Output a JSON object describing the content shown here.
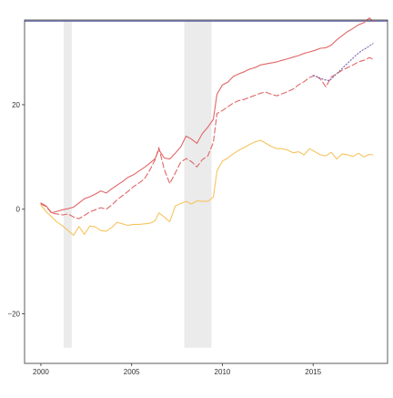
{
  "chart_data": {
    "type": "line",
    "title": "",
    "xlabel": "",
    "ylabel": "",
    "xlim": [
      1999.1,
      2019.1
    ],
    "ylim": [
      -29.5,
      36.2
    ],
    "grid": false,
    "legend": "none",
    "x_ticks": [
      2000,
      2005,
      2010,
      2015
    ],
    "x_tick_labels": [
      "2000",
      "2005",
      "2010",
      "2015"
    ],
    "y_ticks": [
      -20,
      0,
      20
    ],
    "y_tick_labels": [
      "−20",
      "0",
      "20"
    ],
    "shaded_periods": [
      {
        "start": 2001.25,
        "end": 2001.7,
        "ymin": -26.5,
        "ymax": 36.0,
        "color": "#ebebeb"
      },
      {
        "start": 2007.9,
        "end": 2009.4,
        "ymin": -26.5,
        "ymax": 36.0,
        "color": "#ebebeb"
      }
    ],
    "horizontal_lines": [
      {
        "y": 36.0,
        "color": "#5b5ea6"
      }
    ],
    "series": [
      {
        "color": "#e06666",
        "style": "solid",
        "x": [
          2000.0,
          2000.3,
          2000.6,
          2000.9,
          2001.2,
          2001.5,
          2001.8,
          2002.1,
          2002.4,
          2002.7,
          2003.0,
          2003.3,
          2003.6,
          2003.9,
          2004.2,
          2004.5,
          2004.8,
          2005.1,
          2005.4,
          2005.7,
          2006.0,
          2006.3,
          2006.5,
          2006.8,
          2007.1,
          2007.4,
          2007.7,
          2008.0,
          2008.3,
          2008.6,
          2008.9,
          2009.2,
          2009.5,
          2009.7,
          2010.0,
          2010.3,
          2010.6,
          2010.9,
          2011.2,
          2011.5,
          2011.8,
          2012.1,
          2012.4,
          2012.7,
          2013.0,
          2013.3,
          2013.6,
          2013.9,
          2014.2,
          2014.5,
          2014.8,
          2015.1,
          2015.4,
          2015.7,
          2016.0,
          2016.3,
          2016.6,
          2016.9,
          2017.2,
          2017.5,
          2017.8,
          2018.1,
          2018.3
        ],
        "values": [
          1.2,
          0.6,
          -0.7,
          -0.4,
          -0.1,
          0.1,
          0.4,
          1.2,
          2.0,
          2.4,
          2.9,
          3.5,
          3.1,
          3.9,
          4.6,
          5.3,
          6.1,
          6.6,
          7.3,
          8.0,
          8.8,
          9.7,
          11.4,
          9.8,
          9.6,
          10.7,
          11.9,
          14.0,
          13.4,
          12.6,
          14.5,
          15.7,
          17.2,
          22.0,
          23.8,
          24.3,
          25.4,
          25.9,
          26.3,
          26.8,
          27.1,
          27.6,
          27.8,
          28.0,
          28.2,
          28.5,
          28.8,
          29.1,
          29.4,
          29.8,
          30.1,
          30.4,
          30.8,
          30.9,
          31.4,
          32.4,
          33.2,
          34.0,
          34.6,
          35.3,
          35.7,
          36.6,
          35.9
        ]
      },
      {
        "color": "#e06666",
        "style": "dashed",
        "x": [
          2000.0,
          2000.3,
          2000.6,
          2000.9,
          2001.2,
          2001.5,
          2001.8,
          2002.1,
          2002.4,
          2002.7,
          2003.0,
          2003.3,
          2003.6,
          2003.9,
          2004.2,
          2004.5,
          2004.8,
          2005.1,
          2005.4,
          2005.7,
          2006.0,
          2006.3,
          2006.5,
          2006.8,
          2007.1,
          2007.4,
          2007.7,
          2008.0,
          2008.3,
          2008.6,
          2008.9,
          2009.2,
          2009.5,
          2009.7,
          2010.0,
          2010.3,
          2010.6,
          2010.9,
          2011.2,
          2011.5,
          2011.8,
          2012.1,
          2012.4,
          2012.7,
          2013.0,
          2013.3,
          2013.6,
          2013.9,
          2014.2,
          2014.5,
          2014.8,
          2015.1,
          2015.4,
          2015.7,
          2016.0,
          2016.3,
          2016.6,
          2016.9,
          2017.2,
          2017.5,
          2017.8,
          2018.1,
          2018.3
        ],
        "values": [
          1.0,
          0.5,
          -0.8,
          -0.9,
          -1.1,
          -0.9,
          -1.5,
          -1.8,
          -1.2,
          -0.5,
          -0.1,
          0.3,
          0.0,
          0.8,
          1.8,
          2.6,
          3.4,
          4.3,
          5.0,
          5.8,
          7.5,
          9.5,
          11.8,
          7.6,
          4.9,
          6.9,
          9.0,
          9.7,
          9.1,
          8.1,
          9.5,
          10.2,
          12.8,
          18.3,
          18.9,
          19.6,
          20.3,
          20.8,
          21.0,
          21.4,
          21.8,
          22.2,
          22.4,
          22.0,
          21.7,
          22.1,
          22.5,
          23.0,
          23.8,
          24.4,
          25.2,
          25.6,
          24.9,
          23.4,
          25.3,
          25.9,
          26.6,
          27.1,
          27.6,
          28.2,
          28.5,
          29.0,
          28.7
        ]
      },
      {
        "color": "#7b5ea6",
        "style": "dotted",
        "x": [
          2015.0,
          2015.3,
          2015.6,
          2015.9,
          2016.2,
          2016.5,
          2016.8,
          2017.1,
          2017.4,
          2017.7,
          2018.0,
          2018.3
        ],
        "values": [
          25.6,
          25.2,
          24.8,
          24.6,
          25.6,
          26.6,
          27.6,
          28.6,
          29.6,
          30.4,
          31.0,
          31.7
        ]
      },
      {
        "color": "#f6c45f",
        "style": "solid",
        "x": [
          2000.0,
          2000.3,
          2000.6,
          2000.9,
          2001.2,
          2001.5,
          2001.8,
          2002.1,
          2002.4,
          2002.7,
          2003.0,
          2003.3,
          2003.6,
          2003.9,
          2004.2,
          2004.5,
          2004.8,
          2005.1,
          2005.4,
          2005.7,
          2006.0,
          2006.3,
          2006.5,
          2006.8,
          2007.1,
          2007.4,
          2007.7,
          2008.0,
          2008.3,
          2008.6,
          2008.9,
          2009.2,
          2009.5,
          2009.7,
          2010.0,
          2010.3,
          2010.6,
          2010.9,
          2011.2,
          2011.5,
          2011.8,
          2012.1,
          2012.4,
          2012.7,
          2013.0,
          2013.3,
          2013.6,
          2013.9,
          2014.2,
          2014.5,
          2014.8,
          2015.1,
          2015.4,
          2015.7,
          2016.0,
          2016.3,
          2016.6,
          2016.9,
          2017.2,
          2017.5,
          2017.8,
          2018.1,
          2018.3
        ],
        "values": [
          0.8,
          -0.5,
          -1.5,
          -2.5,
          -3.2,
          -4.1,
          -5.0,
          -3.3,
          -4.8,
          -3.2,
          -3.4,
          -4.1,
          -4.2,
          -3.5,
          -2.5,
          -2.8,
          -3.1,
          -2.9,
          -2.9,
          -2.8,
          -2.7,
          -2.2,
          -0.7,
          -1.5,
          -2.4,
          0.6,
          1.1,
          1.5,
          1.0,
          1.6,
          1.5,
          1.5,
          2.3,
          7.3,
          9.2,
          9.8,
          10.6,
          11.3,
          11.8,
          12.4,
          12.9,
          13.2,
          12.6,
          12.0,
          11.6,
          11.6,
          11.3,
          10.8,
          11.0,
          10.4,
          11.6,
          11.0,
          10.4,
          10.2,
          10.9,
          9.6,
          10.6,
          10.4,
          10.1,
          10.7,
          10.0,
          10.5,
          10.4
        ]
      }
    ]
  }
}
